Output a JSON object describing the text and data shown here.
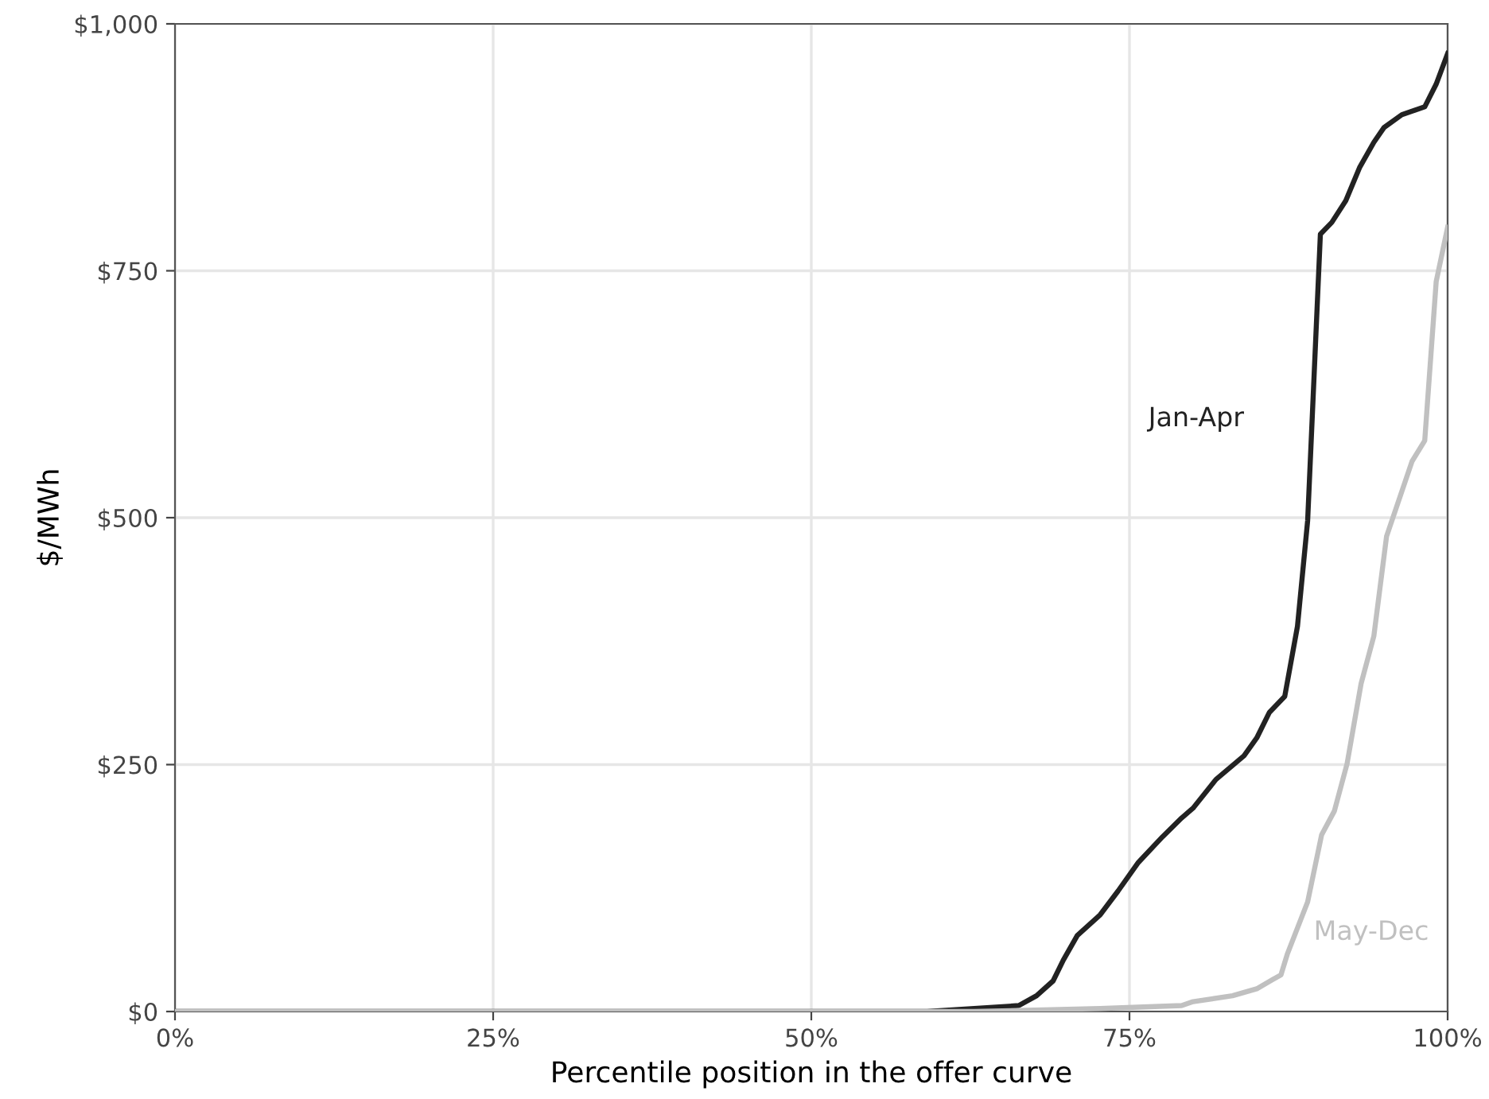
{
  "chart_data": {
    "type": "line",
    "xlabel": "Percentile position in the offer curve",
    "ylabel": "$/MWh",
    "xlim": [
      0,
      100
    ],
    "ylim": [
      0,
      1000
    ],
    "xticks": [
      {
        "value": 0,
        "label": "0%"
      },
      {
        "value": 25,
        "label": "25%"
      },
      {
        "value": 50,
        "label": "50%"
      },
      {
        "value": 75,
        "label": "75%"
      },
      {
        "value": 100,
        "label": "100%"
      }
    ],
    "yticks": [
      {
        "value": 0,
        "label": "$0"
      },
      {
        "value": 250,
        "label": "$250"
      },
      {
        "value": 500,
        "label": "$500"
      },
      {
        "value": 750,
        "label": "$750"
      },
      {
        "value": 1000,
        "label": "$1,000"
      }
    ],
    "grid": true,
    "legend": false,
    "marker": "none",
    "line_style": "solid",
    "series": [
      {
        "name": "Jan-Apr",
        "color": "#222222",
        "x": [
          0,
          59.1,
          66.3,
          67.7,
          69.0,
          69.8,
          70.9,
          72.7,
          74.1,
          75.7,
          77.6,
          79.1,
          80.0,
          81.8,
          84.0,
          85.0,
          86.0,
          87.2,
          88.2,
          89.0,
          90.0,
          90.9,
          92.0,
          93.1,
          94.2,
          95.0,
          96.4,
          98.2,
          99.1,
          100
        ],
        "values": [
          0,
          0,
          6,
          16,
          31,
          52,
          77,
          98,
          122,
          151,
          177,
          196,
          206,
          235,
          259,
          277,
          303,
          319,
          390,
          497,
          787,
          799,
          821,
          855,
          880,
          895,
          908,
          916,
          939,
          970
        ]
      },
      {
        "name": "May-Dec",
        "color": "#c0c0c0",
        "x": [
          0,
          62.8,
          72.7,
          79.1,
          80.0,
          83.1,
          85.0,
          86.2,
          86.9,
          87.4,
          89.0,
          90.1,
          91.1,
          92.1,
          93.2,
          94.2,
          95.2,
          97.2,
          98.2,
          99.1,
          100
        ],
        "values": [
          0,
          0,
          3,
          6,
          10,
          16,
          23,
          32,
          37,
          58,
          111,
          179,
          203,
          251,
          332,
          380,
          481,
          557,
          578,
          739,
          794
        ]
      }
    ]
  }
}
